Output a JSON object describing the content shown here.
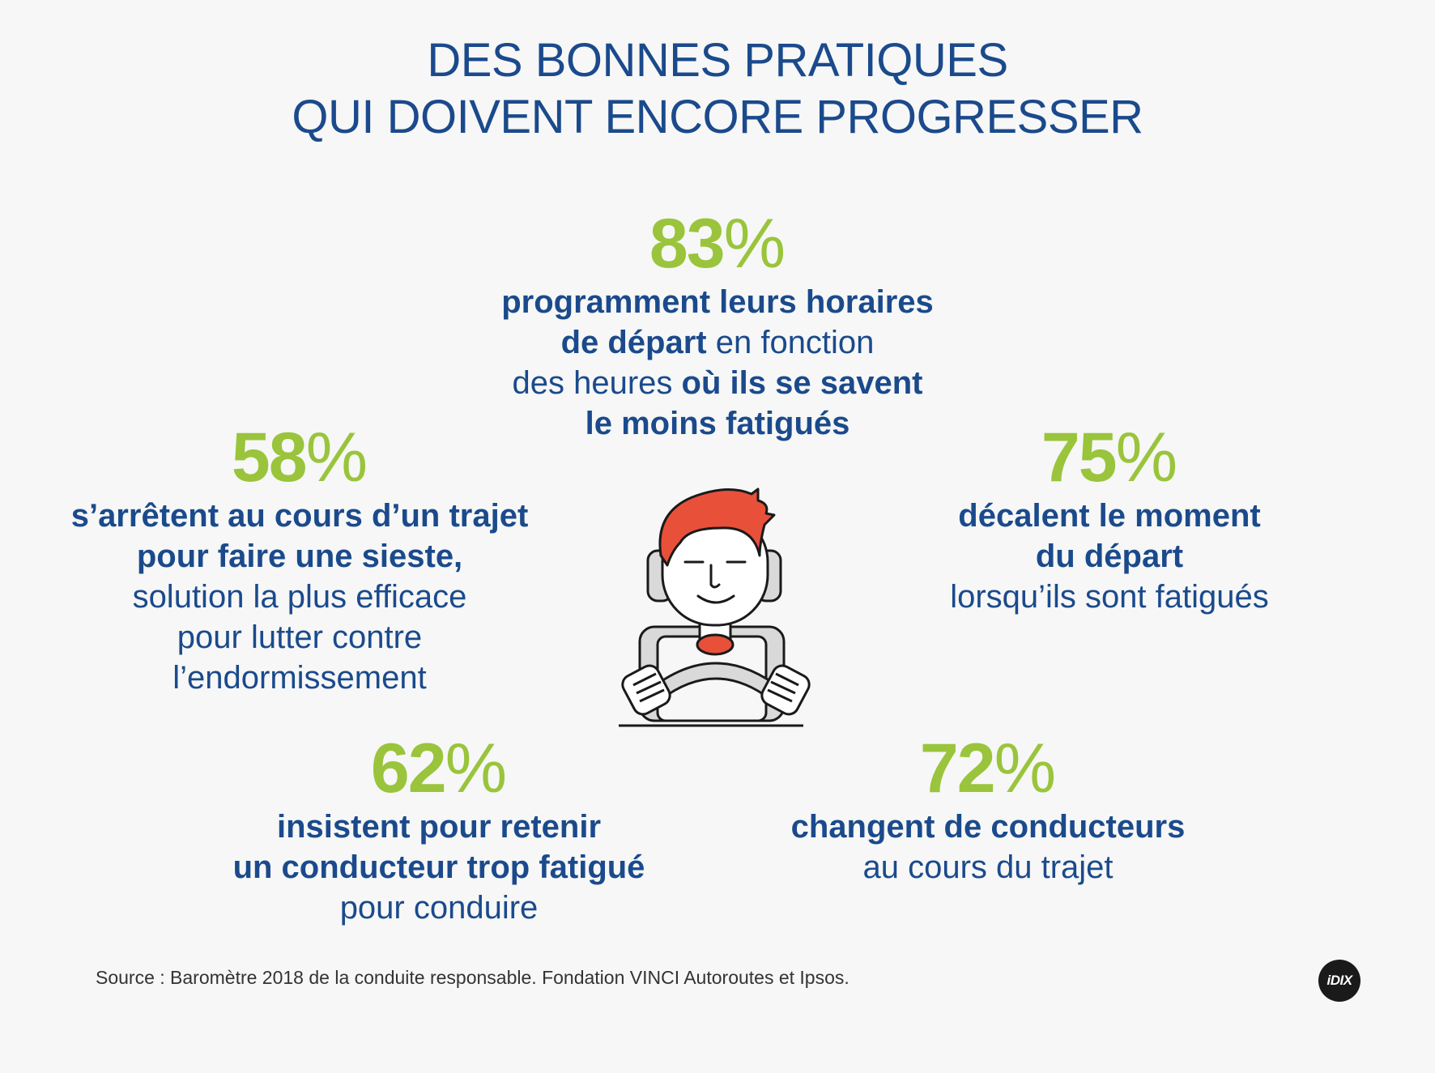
{
  "title": {
    "line1": "DES BONNES PRATIQUES",
    "line2": "QUI DOIVENT ENCORE PROGRESSER"
  },
  "stats": {
    "top": {
      "number": "83",
      "sign": "%",
      "lines": [
        [
          {
            "t": "programment leurs horaires",
            "b": true
          }
        ],
        [
          {
            "t": "de départ",
            "b": true
          },
          {
            "t": " en fonction",
            "b": false
          }
        ],
        [
          {
            "t": "des heures ",
            "b": false
          },
          {
            "t": "où ils se savent",
            "b": true
          }
        ],
        [
          {
            "t": "le moins fatigués",
            "b": true
          }
        ]
      ]
    },
    "left": {
      "number": "58",
      "sign": "%",
      "lines": [
        [
          {
            "t": "s’arrêtent au cours d’un trajet",
            "b": true
          }
        ],
        [
          {
            "t": "pour faire une sieste,",
            "b": true
          }
        ],
        [
          {
            "t": "solution la plus efficace",
            "b": false
          }
        ],
        [
          {
            "t": "pour lutter contre",
            "b": false
          }
        ],
        [
          {
            "t": "l’endormissement",
            "b": false
          }
        ]
      ]
    },
    "right": {
      "number": "75",
      "sign": "%",
      "lines": [
        [
          {
            "t": "décalent le moment",
            "b": true
          }
        ],
        [
          {
            "t": "du départ",
            "b": true
          }
        ],
        [
          {
            "t": "lorsqu’ils sont fatigués",
            "b": false
          }
        ]
      ]
    },
    "bottom_left": {
      "number": "62",
      "sign": "%",
      "lines": [
        [
          {
            "t": "insistent pour retenir",
            "b": true
          }
        ],
        [
          {
            "t": "un conducteur trop fatigué",
            "b": true
          }
        ],
        [
          {
            "t": "pour conduire",
            "b": false
          }
        ]
      ]
    },
    "bottom_right": {
      "number": "72",
      "sign": "%",
      "lines": [
        [
          {
            "t": "changent de conducteurs",
            "b": true
          }
        ],
        [
          {
            "t": "au cours du trajet",
            "b": false
          }
        ]
      ]
    }
  },
  "source": "Source : Baromètre 2018 de la conduite responsable. Fondation VINCI Autoroutes et Ipsos.",
  "logo": "iDIX",
  "illustration": "driver-at-steering-wheel",
  "colors": {
    "title": "#1b4a8c",
    "percent": "#9ac43c",
    "text": "#1b4a8c",
    "hair": "#e8503a",
    "background": "#f6f7f6"
  }
}
